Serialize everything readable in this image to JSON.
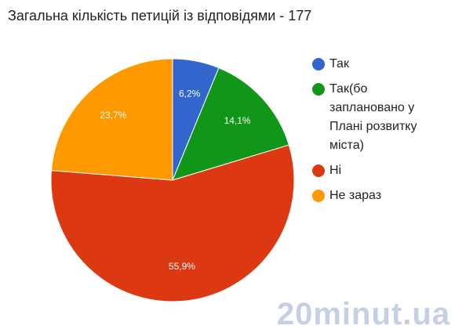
{
  "chart_data": {
    "type": "pie",
    "title": "Загальна кількість петицій із відповідями - 177",
    "categories": [
      "Так",
      "Так(бо заплановано у Плані розвитку міста)",
      "Ні",
      "Не зараз"
    ],
    "values": [
      6.2,
      14.1,
      55.9,
      23.7
    ],
    "value_labels": [
      "6,2%",
      "14,1%",
      "55,9%",
      "23,7%"
    ],
    "colors": [
      "#3366cc",
      "#109618",
      "#dc3912",
      "#ff9900"
    ],
    "legend": "right"
  },
  "watermark": "20minut.ua"
}
